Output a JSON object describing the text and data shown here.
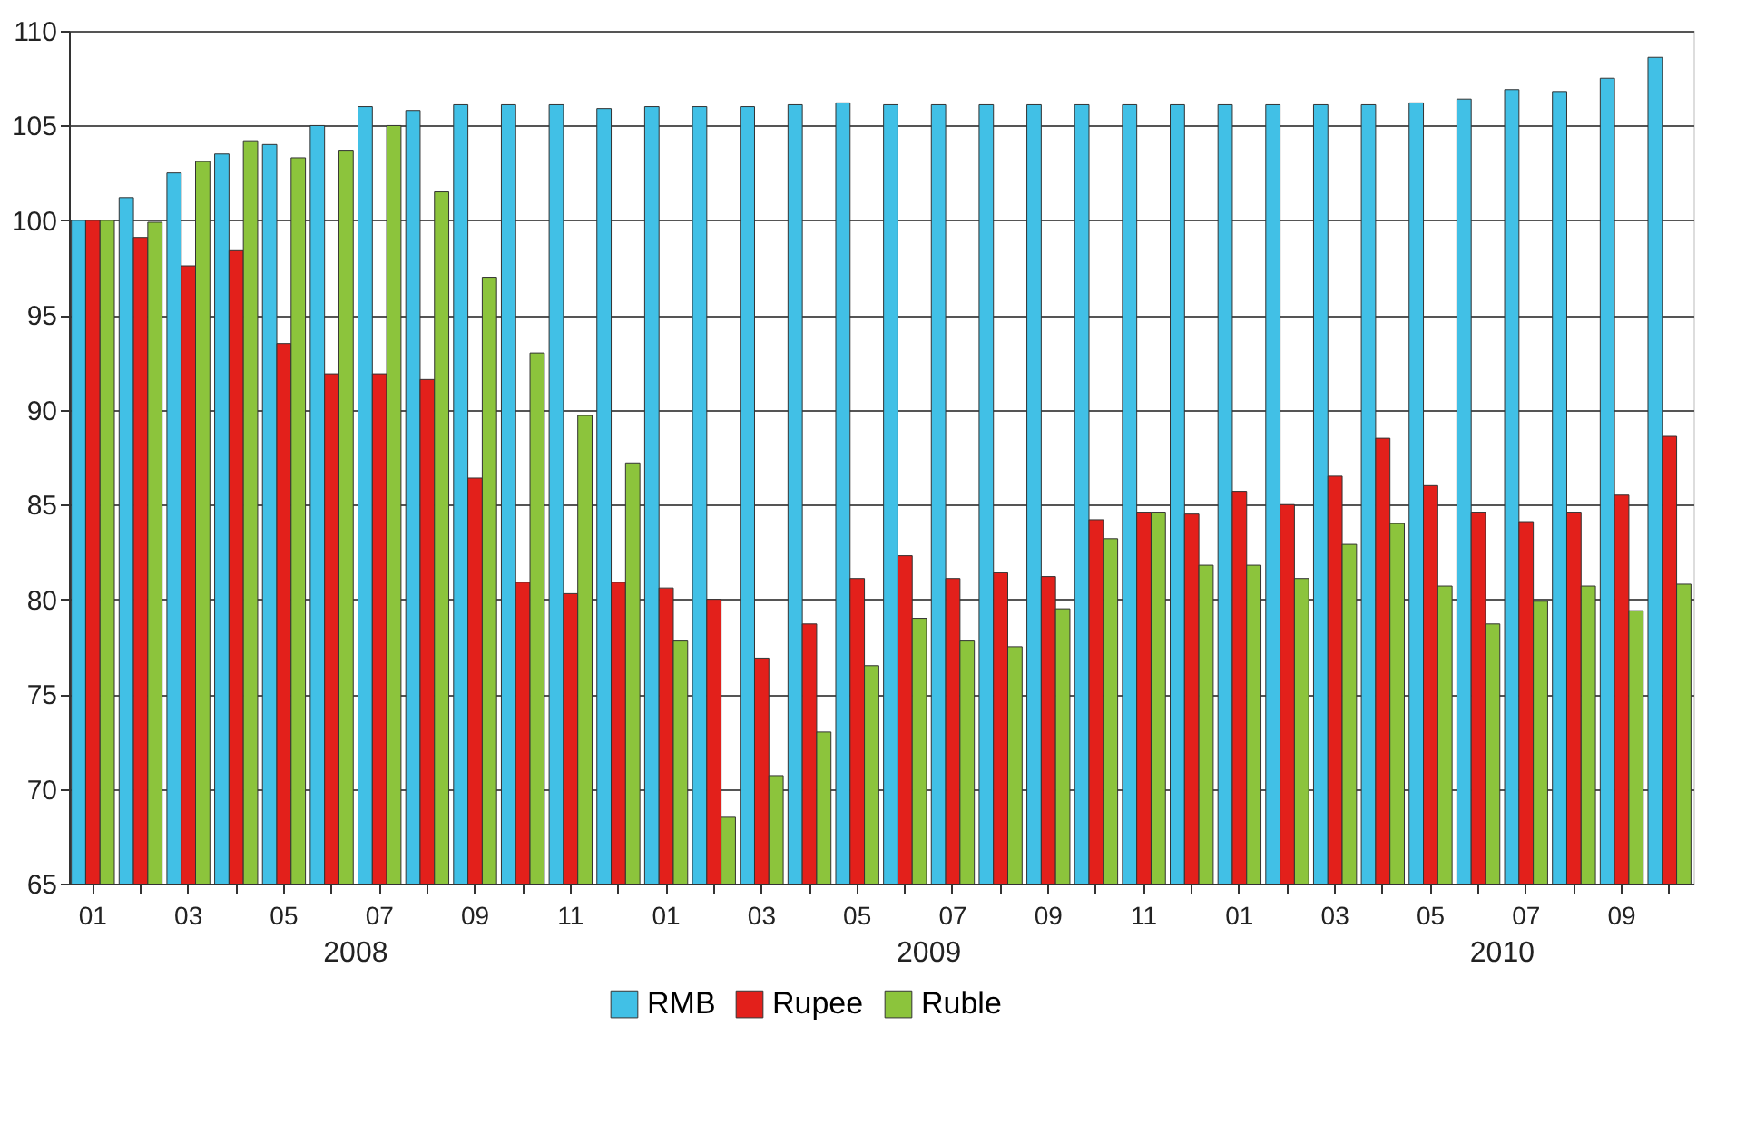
{
  "chart_data": {
    "type": "bar",
    "categories": [
      "01",
      null,
      "03",
      null,
      "05",
      null,
      "07",
      null,
      "09",
      null,
      "11",
      null,
      "01",
      null,
      "03",
      null,
      "05",
      null,
      "07",
      null,
      "09",
      null,
      "11",
      null,
      "01",
      null,
      "03",
      null,
      "05",
      null,
      "07",
      null,
      "09",
      null
    ],
    "series": [
      {
        "name": "RMB",
        "color": "#41c0e6",
        "values": [
          100,
          101.2,
          102.5,
          103.5,
          104,
          105,
          106,
          105.8,
          106.1,
          106.1,
          106.1,
          105.9,
          106,
          106,
          106,
          106.1,
          106.2,
          106.1,
          106.1,
          106.1,
          106.1,
          106.1,
          106.1,
          106.1,
          106.1,
          106.1,
          106.1,
          106.1,
          106.2,
          106.4,
          106.9,
          106.8,
          107.5,
          108.6
        ]
      },
      {
        "name": "Rupee",
        "color": "#e3201b",
        "values": [
          100,
          99.1,
          97.6,
          98.4,
          93.5,
          91.9,
          91.9,
          91.6,
          86.4,
          80.9,
          80.3,
          80.9,
          80.6,
          80,
          76.9,
          78.7,
          81.1,
          82.3,
          81.1,
          81.4,
          81.2,
          84.2,
          84.6,
          84.5,
          85.7,
          85,
          86.5,
          88.5,
          86,
          84.6,
          84.1,
          84.6,
          85.5,
          88.6
        ]
      },
      {
        "name": "Ruble",
        "color": "#8cc43c",
        "values": [
          100,
          99.9,
          103.1,
          104.2,
          103.3,
          103.7,
          105,
          101.5,
          97,
          93,
          89.7,
          87.2,
          77.8,
          68.5,
          70.7,
          73,
          76.5,
          79,
          77.8,
          77.5,
          79.5,
          83.2,
          84.6,
          81.8,
          81.8,
          81.1,
          82.9,
          84,
          80.7,
          78.7,
          79.9,
          80.7,
          79.4,
          80.8
        ]
      }
    ],
    "annotations": [
      "2008",
      "2009",
      "2010"
    ],
    "ylim": [
      65,
      110
    ],
    "yticks": [
      65,
      70,
      75,
      80,
      85,
      90,
      95,
      100,
      105,
      110
    ],
    "grid": "y",
    "legend": "bottom"
  }
}
